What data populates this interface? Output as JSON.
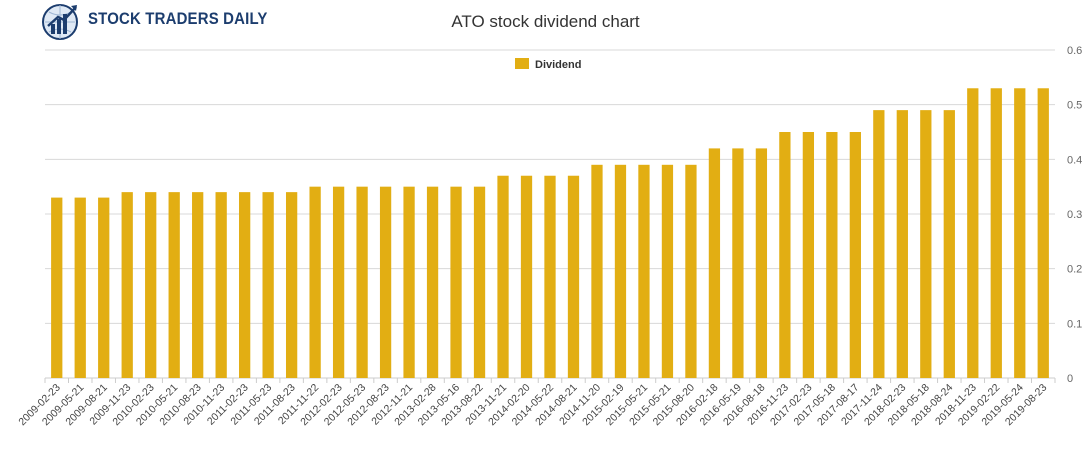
{
  "brand": {
    "name": "STOCK TRADERS DAILY",
    "logo_icon": "globe-with-rising-bars-icon",
    "color": "#1c3d6e"
  },
  "chart_data": {
    "type": "bar",
    "title": "ATO stock dividend chart",
    "xlabel": "",
    "ylabel": "",
    "ylim": [
      0,
      0.6
    ],
    "yticks": [
      "0",
      "0.1",
      "0.2",
      "0.3",
      "0.4",
      "0.5",
      "0.6"
    ],
    "grid": true,
    "legend_position": "top-center",
    "bar_color": "#e2ae13",
    "categories": [
      "2009-02-23",
      "2009-05-21",
      "2009-08-21",
      "2009-11-23",
      "2010-02-23",
      "2010-05-21",
      "2010-08-23",
      "2010-11-23",
      "2011-02-23",
      "2011-05-23",
      "2011-08-23",
      "2011-11-22",
      "2012-02-23",
      "2012-05-23",
      "2012-08-23",
      "2012-11-21",
      "2013-02-28",
      "2013-05-16",
      "2013-08-22",
      "2013-11-21",
      "2014-02-20",
      "2014-05-22",
      "2014-08-21",
      "2014-11-20",
      "2015-02-19",
      "2015-05-21",
      "2015-05-21",
      "2015-08-20",
      "2016-02-18",
      "2016-05-19",
      "2016-08-18",
      "2016-11-23",
      "2017-02-23",
      "2017-05-18",
      "2017-08-17",
      "2017-11-24",
      "2018-02-23",
      "2018-05-18",
      "2018-08-24",
      "2018-11-23",
      "2019-02-22",
      "2019-05-24",
      "2019-08-23"
    ],
    "series": [
      {
        "name": "Dividend",
        "values": [
          0.33,
          0.33,
          0.33,
          0.34,
          0.34,
          0.34,
          0.34,
          0.34,
          0.34,
          0.34,
          0.34,
          0.35,
          0.35,
          0.35,
          0.35,
          0.35,
          0.35,
          0.35,
          0.35,
          0.37,
          0.37,
          0.37,
          0.37,
          0.39,
          0.39,
          0.39,
          0.39,
          0.39,
          0.42,
          0.42,
          0.42,
          0.45,
          0.45,
          0.45,
          0.45,
          0.49,
          0.49,
          0.49,
          0.49,
          0.53,
          0.53,
          0.53,
          0.53
        ]
      }
    ]
  }
}
